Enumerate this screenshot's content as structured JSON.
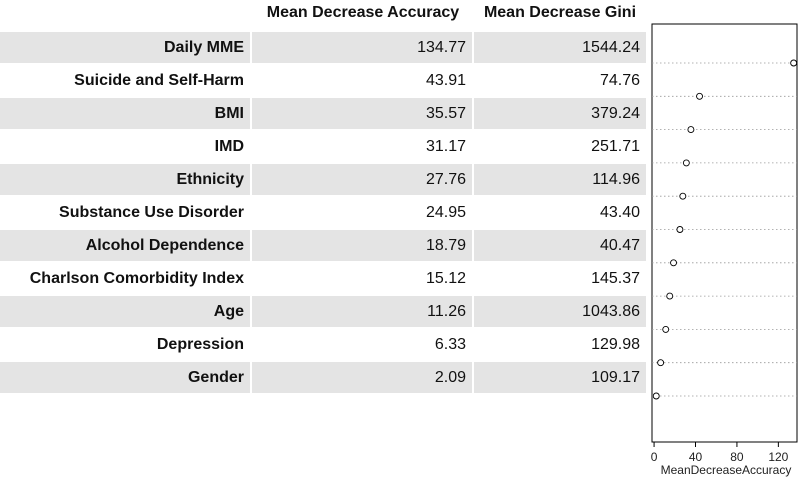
{
  "table": {
    "columns": [
      "Mean Decrease Accuracy",
      "Mean Decrease Gini"
    ],
    "rows": [
      {
        "name": "Daily MME",
        "accuracy": "134.77",
        "gini": "1544.24"
      },
      {
        "name": "Suicide and Self-Harm",
        "accuracy": "43.91",
        "gini": "74.76"
      },
      {
        "name": "BMI",
        "accuracy": "35.57",
        "gini": "379.24"
      },
      {
        "name": "IMD",
        "accuracy": "31.17",
        "gini": "251.71"
      },
      {
        "name": "Ethnicity",
        "accuracy": "27.76",
        "gini": "114.96"
      },
      {
        "name": "Substance Use Disorder",
        "accuracy": "24.95",
        "gini": "43.40"
      },
      {
        "name": "Alcohol Dependence",
        "accuracy": "18.79",
        "gini": "40.47"
      },
      {
        "name": "Charlson Comorbidity Index",
        "accuracy": "15.12",
        "gini": "145.37"
      },
      {
        "name": "Age",
        "accuracy": "11.26",
        "gini": "1043.86"
      },
      {
        "name": "Depression",
        "accuracy": "6.33",
        "gini": "129.98"
      },
      {
        "name": "Gender",
        "accuracy": "2.09",
        "gini": "109.17"
      }
    ]
  },
  "chart_data": {
    "type": "scatter",
    "xlabel": "MeanDecreaseAccuracy",
    "xticks": [
      0,
      40,
      80,
      120
    ],
    "xlim": [
      -2,
      138
    ],
    "categories": [
      "Daily MME",
      "Suicide and Self-Harm",
      "BMI",
      "IMD",
      "Ethnicity",
      "Substance Use Disorder",
      "Alcohol Dependence",
      "Charlson Comorbidity Index",
      "Age",
      "Depression",
      "Gender"
    ],
    "values": [
      134.77,
      43.91,
      35.57,
      31.17,
      27.76,
      24.95,
      18.79,
      15.12,
      11.26,
      6.33,
      2.09
    ],
    "grid": "dotted horizontal"
  }
}
